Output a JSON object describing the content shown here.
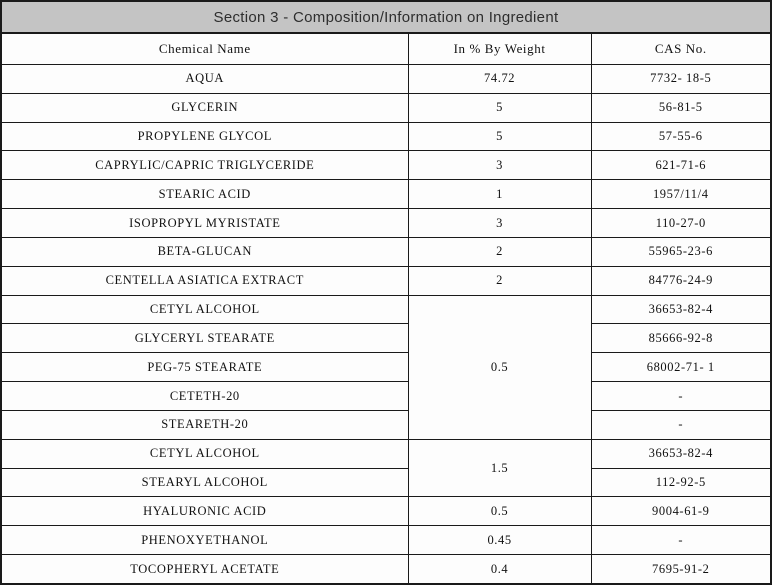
{
  "title": "Section 3 - Composition/Information on Ingredient",
  "table": {
    "columns": [
      "Chemical Name",
      "In % By Weight",
      "CAS No."
    ],
    "rows": [
      {
        "name": "AQUA",
        "weight": "74.72",
        "span": 1,
        "cas": "7732- 18-5"
      },
      {
        "name": "GLYCERIN",
        "weight": "5",
        "span": 1,
        "cas": "56-81-5"
      },
      {
        "name": "PROPYLENE GLYCOL",
        "weight": "5",
        "span": 1,
        "cas": "57-55-6"
      },
      {
        "name": "CAPRYLIC/CAPRIC TRIGLYCERIDE",
        "weight": "3",
        "span": 1,
        "cas": "621-71-6"
      },
      {
        "name": "STEARIC ACID",
        "weight": "1",
        "span": 1,
        "cas": "1957/11/4"
      },
      {
        "name": "ISOPROPYL MYRISTATE",
        "weight": "3",
        "span": 1,
        "cas": "110-27-0"
      },
      {
        "name": "BETA-GLUCAN",
        "weight": "2",
        "span": 1,
        "cas": "55965-23-6"
      },
      {
        "name": "CENTELLA ASIATICA EXTRACT",
        "weight": "2",
        "span": 1,
        "cas": "84776-24-9"
      },
      {
        "name": "CETYL ALCOHOL",
        "weight": "0.5",
        "span": 5,
        "cas": "36653-82-4"
      },
      {
        "name": "GLYCERYL STEARATE",
        "cas": "85666-92-8"
      },
      {
        "name": "PEG-75 STEARATE",
        "cas": "68002-71- 1"
      },
      {
        "name": "CETETH-20",
        "cas": "-"
      },
      {
        "name": "STEARETH-20",
        "cas": "-"
      },
      {
        "name": "CETYL ALCOHOL",
        "weight": "1.5",
        "span": 2,
        "cas": "36653-82-4"
      },
      {
        "name": "STEARYL ALCOHOL",
        "cas": "112-92-5"
      },
      {
        "name": "HYALURONIC ACID",
        "weight": "0.5",
        "span": 1,
        "cas": "9004-61-9"
      },
      {
        "name": "PHENOXYETHANOL",
        "weight": "0.45",
        "span": 1,
        "cas": "-"
      },
      {
        "name": "TOCOPHERYL ACETATE",
        "weight": "0.4",
        "span": 1,
        "cas": "7695-91-2"
      }
    ]
  }
}
